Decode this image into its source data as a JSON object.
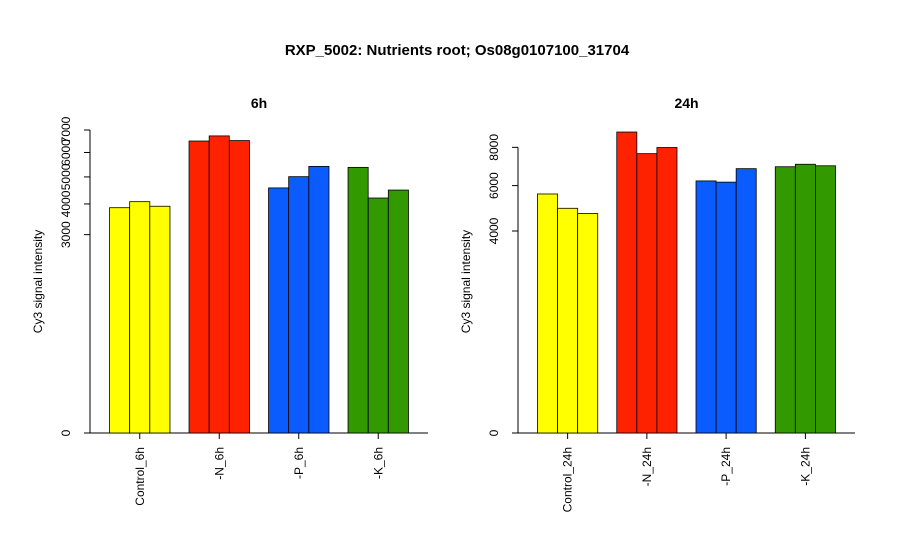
{
  "figure": {
    "title": "RXP_5002: Nutrients root; Os08g0107100_31704"
  },
  "colors": {
    "Control": "#ffff00",
    "-N": "#ff2200",
    "-P": "#0a5cff",
    "-K": "#339900",
    "axis": "#000000",
    "bar_border": "#000000"
  },
  "chart_data": [
    {
      "type": "bar",
      "title": "6h",
      "ylabel": "Cy3 signal intensity",
      "xlabel": "",
      "scale": "sqrt",
      "ylim": [
        0,
        7000
      ],
      "yticks": [
        0,
        3000,
        4000,
        5000,
        6000,
        7000
      ],
      "grid": false,
      "legend": "none",
      "categories": [
        "Control_6h",
        "-N_6h",
        "-P_6h",
        "-K_6h"
      ],
      "groups": [
        {
          "name": "Control_6h",
          "color_key": "Control",
          "values": [
            3870,
            4080,
            3920
          ]
        },
        {
          "name": "-N_6h",
          "color_key": "-N",
          "values": [
            6500,
            6730,
            6520
          ]
        },
        {
          "name": "-P_6h",
          "color_key": "-P",
          "values": [
            4580,
            5010,
            5420
          ]
        },
        {
          "name": "-K_6h",
          "color_key": "-K",
          "values": [
            5380,
            4210,
            4500
          ]
        }
      ]
    },
    {
      "type": "bar",
      "title": "24h",
      "ylabel": "Cy3 signal intensity",
      "xlabel": "",
      "scale": "sqrt",
      "ylim": [
        0,
        9000
      ],
      "yticks": [
        0,
        4000,
        6000,
        8000
      ],
      "grid": false,
      "legend": "none",
      "categories": [
        "Control_24h",
        "-N_24h",
        "-P_24h",
        "-K_24h"
      ],
      "groups": [
        {
          "name": "Control_24h",
          "color_key": "Control",
          "values": [
            5600,
            4950,
            4720
          ]
        },
        {
          "name": "-N_24h",
          "color_key": "-N",
          "values": [
            8880,
            7650,
            7990
          ]
        },
        {
          "name": "-P_24h",
          "color_key": "-P",
          "values": [
            6230,
            6170,
            6850
          ]
        },
        {
          "name": "-K_24h",
          "color_key": "-K",
          "values": [
            6950,
            7080,
            7000
          ]
        }
      ]
    }
  ]
}
